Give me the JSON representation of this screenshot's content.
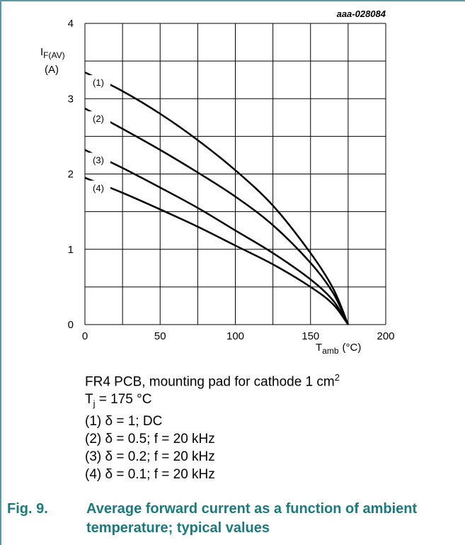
{
  "chart_data": {
    "type": "line",
    "doc_code": "aaa-028084",
    "ylabel_main": "I",
    "ylabel_sub": "F(AV)",
    "ylabel_unit": "(A)",
    "xlabel_main": "T",
    "xlabel_sub": "amb",
    "xlabel_unit": "(°C)",
    "xlim": [
      0,
      200
    ],
    "ylim": [
      0,
      4
    ],
    "x_ticks": [
      0,
      50,
      100,
      150,
      200
    ],
    "y_ticks": [
      0,
      1,
      2,
      3,
      4
    ],
    "grid": true,
    "series": [
      {
        "name": "(1)",
        "x": [
          0,
          25,
          50,
          75,
          100,
          125,
          150,
          165,
          175
        ],
        "y": [
          3.35,
          3.1,
          2.8,
          2.45,
          2.05,
          1.58,
          0.95,
          0.48,
          0
        ]
      },
      {
        "name": "(2)",
        "x": [
          0,
          25,
          50,
          75,
          100,
          125,
          150,
          165,
          175
        ],
        "y": [
          2.87,
          2.6,
          2.32,
          2.02,
          1.7,
          1.32,
          0.82,
          0.42,
          0
        ]
      },
      {
        "name": "(3)",
        "x": [
          0,
          25,
          50,
          75,
          100,
          125,
          150,
          165,
          175
        ],
        "y": [
          2.32,
          2.08,
          1.82,
          1.55,
          1.25,
          0.95,
          0.6,
          0.32,
          0
        ]
      },
      {
        "name": "(4)",
        "x": [
          0,
          25,
          50,
          75,
          100,
          125,
          150,
          165,
          175
        ],
        "y": [
          1.95,
          1.75,
          1.53,
          1.3,
          1.05,
          0.8,
          0.5,
          0.27,
          0
        ]
      }
    ]
  },
  "notes": {
    "line1": "FR4 PCB, mounting pad for cathode 1 cm",
    "line1_sup": "2",
    "line2_main": "T",
    "line2_sub": "j",
    "line2_rest": " = 175 °C",
    "items": [
      "(1) δ = 1; DC",
      "(2) δ = 0.5; f = 20 kHz",
      "(3) δ = 0.2; f = 20 kHz",
      "(4) δ = 0.1; f = 20 kHz"
    ]
  },
  "caption": {
    "number": "Fig. 9.",
    "text": "Average forward current as a function of ambient temperature; typical values"
  }
}
